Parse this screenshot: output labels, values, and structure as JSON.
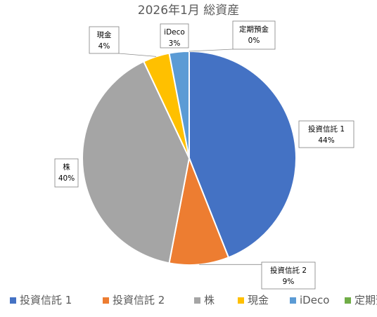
{
  "chart_data": {
    "type": "pie",
    "title": "2026年1月 総資産",
    "categories": [
      "投資信託 1",
      "投資信託 2",
      "株",
      "現金",
      "iDeco",
      "定期預金"
    ],
    "values": [
      44,
      9,
      40,
      4,
      3,
      0
    ],
    "data_labels": [
      "44%",
      "9%",
      "40%",
      "4%",
      "3%",
      "0%"
    ],
    "colors": [
      "#4472C4",
      "#ED7D31",
      "#A5A5A5",
      "#FFC000",
      "#5B9BD5",
      "#70AD47"
    ],
    "legend": "bottom",
    "start_angle_deg": 0,
    "direction": "clockwise",
    "data_label_style": "callout"
  }
}
